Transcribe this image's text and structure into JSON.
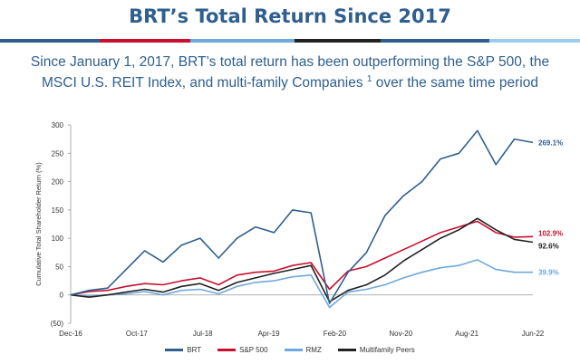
{
  "header": {
    "title": "BRT’s Total Return Since 2017",
    "subtitle": "Since January 1, 2017, BRT’s total return has been outperforming the S&P 500, the MSCI U.S. REIT Index, and multi-family Companies",
    "footnote_mark": "1",
    "subtitle_tail": " over the same time period"
  },
  "stripes": [
    {
      "color": "#2f5f8e"
    },
    {
      "color": "#c8102e"
    },
    {
      "color": "#6fa8dc"
    },
    {
      "color": "#222222"
    },
    {
      "color": "#2f5f8e"
    },
    {
      "color": "#9ccbf0"
    }
  ],
  "chart_data": {
    "type": "line",
    "ylabel": "Cumulative Total Shareholder Return (%)",
    "xlabel": "",
    "ylim": [
      -50,
      300
    ],
    "yticks": [
      -50,
      0,
      50,
      100,
      150,
      200,
      250,
      300
    ],
    "ytick_labels": [
      "(50)",
      "0",
      "50",
      "100",
      "150",
      "200",
      "250",
      "300"
    ],
    "x_tick_labels": [
      "Dec-16",
      "Oct-17",
      "Jul-18",
      "Apr-19",
      "Feb-20",
      "Nov-20",
      "Aug-21",
      "Jun-22"
    ],
    "x": [
      "Dec-16",
      "Mar-17",
      "Jun-17",
      "Sep-17",
      "Dec-17",
      "Mar-18",
      "Jun-18",
      "Sep-18",
      "Dec-18",
      "Mar-19",
      "Jun-19",
      "Sep-19",
      "Dec-19",
      "Feb-20",
      "Mar-20",
      "Jun-20",
      "Sep-20",
      "Dec-20",
      "Mar-21",
      "Jun-21",
      "Sep-21",
      "Dec-21",
      "Mar-22",
      "Apr-22",
      "May-22",
      "Jun-22"
    ],
    "series": [
      {
        "name": "BRT",
        "color": "#2f5f8e",
        "end_label": "269.1%",
        "values": [
          0,
          8,
          12,
          45,
          78,
          58,
          88,
          100,
          65,
          100,
          120,
          110,
          150,
          145,
          -15,
          40,
          75,
          140,
          175,
          200,
          240,
          250,
          290,
          230,
          275,
          269
        ]
      },
      {
        "name": "S&P 500",
        "color": "#c8102e",
        "end_label": "102.9%",
        "values": [
          0,
          6,
          8,
          15,
          20,
          18,
          25,
          30,
          18,
          35,
          40,
          42,
          52,
          57,
          10,
          42,
          50,
          65,
          80,
          95,
          110,
          120,
          130,
          110,
          102,
          103
        ]
      },
      {
        "name": "RMZ",
        "color": "#6fa8dc",
        "end_label": "39.9%",
        "values": [
          0,
          -2,
          0,
          2,
          6,
          0,
          8,
          10,
          2,
          15,
          22,
          25,
          32,
          35,
          -22,
          5,
          10,
          18,
          30,
          40,
          48,
          52,
          62,
          45,
          40,
          40
        ]
      },
      {
        "name": "Multifamily Peers",
        "color": "#222222",
        "end_label": "92.6%",
        "values": [
          0,
          -4,
          0,
          5,
          10,
          5,
          15,
          20,
          8,
          22,
          30,
          38,
          45,
          52,
          -12,
          8,
          18,
          35,
          60,
          80,
          100,
          115,
          135,
          115,
          98,
          93
        ]
      }
    ],
    "legend_position": "bottom",
    "grid": false
  }
}
